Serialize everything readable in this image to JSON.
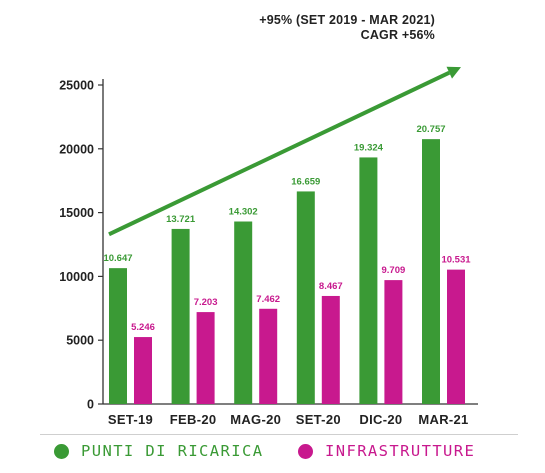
{
  "annotations": {
    "growth": "+95%  (SET 2019 - MAR 2021)",
    "cagr": "CAGR +56%"
  },
  "chart_data": {
    "type": "bar",
    "title": "",
    "xlabel": "",
    "ylabel": "",
    "ylim": [
      0,
      25000
    ],
    "yticks": [
      0,
      5000,
      10000,
      15000,
      20000,
      25000
    ],
    "grid": false,
    "legend_position": "bottom",
    "categories": [
      "SET-19",
      "FEB-20",
      "MAG-20",
      "SET-20",
      "DIC-20",
      "MAR-21"
    ],
    "series": [
      {
        "name": "PUNTI DI RICARICA",
        "color": "#3a9a35",
        "values": [
          10647,
          13721,
          14302,
          16659,
          19324,
          20757
        ],
        "labels": [
          "10.647",
          "13.721",
          "14.302",
          "16.659",
          "19.324",
          "20.757"
        ]
      },
      {
        "name": "INFRASTRUTTURE",
        "color": "#c8198e",
        "values": [
          5246,
          7203,
          7462,
          8467,
          9709,
          10531
        ],
        "labels": [
          "5.246",
          "7.203",
          "7.462",
          "8.467",
          "9.709",
          "10.531"
        ]
      }
    ],
    "trend_arrow": {
      "color": "#3a9a35",
      "from_value": 13300,
      "to_value": 26400
    }
  }
}
